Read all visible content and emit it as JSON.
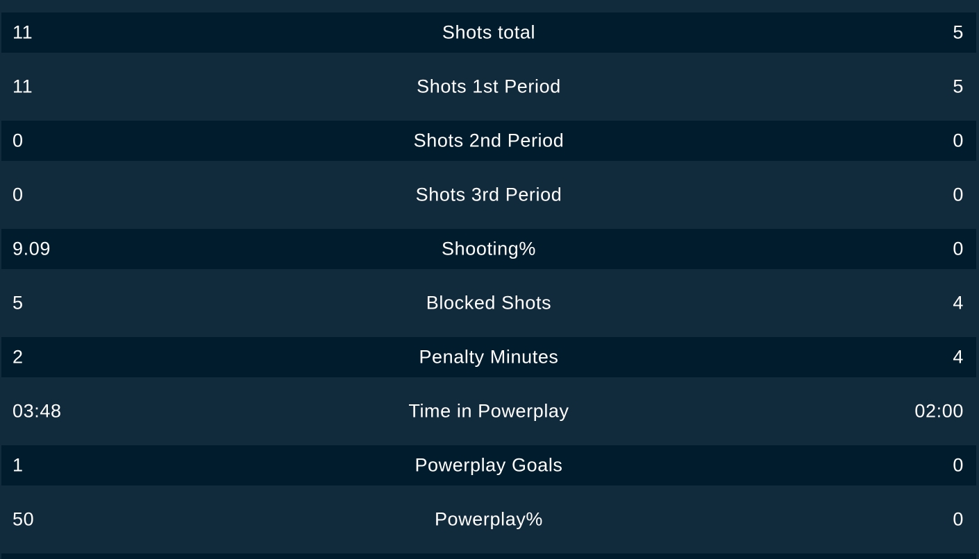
{
  "stats": [
    {
      "home": "11",
      "label": "Shots total",
      "away": "5"
    },
    {
      "home": "11",
      "label": "Shots 1st Period",
      "away": "5"
    },
    {
      "home": "0",
      "label": "Shots 2nd Period",
      "away": "0"
    },
    {
      "home": "0",
      "label": "Shots 3rd Period",
      "away": "0"
    },
    {
      "home": "9.09",
      "label": "Shooting%",
      "away": "0"
    },
    {
      "home": "5",
      "label": "Blocked Shots",
      "away": "4"
    },
    {
      "home": "2",
      "label": "Penalty Minutes",
      "away": "4"
    },
    {
      "home": "03:48",
      "label": "Time in Powerplay",
      "away": "02:00"
    },
    {
      "home": "1",
      "label": "Powerplay Goals",
      "away": "0"
    },
    {
      "home": "50",
      "label": "Powerplay%",
      "away": "0"
    }
  ],
  "colors": {
    "background": "#112a3c",
    "row_dark": "#001c2d",
    "text": "#ffffff"
  }
}
